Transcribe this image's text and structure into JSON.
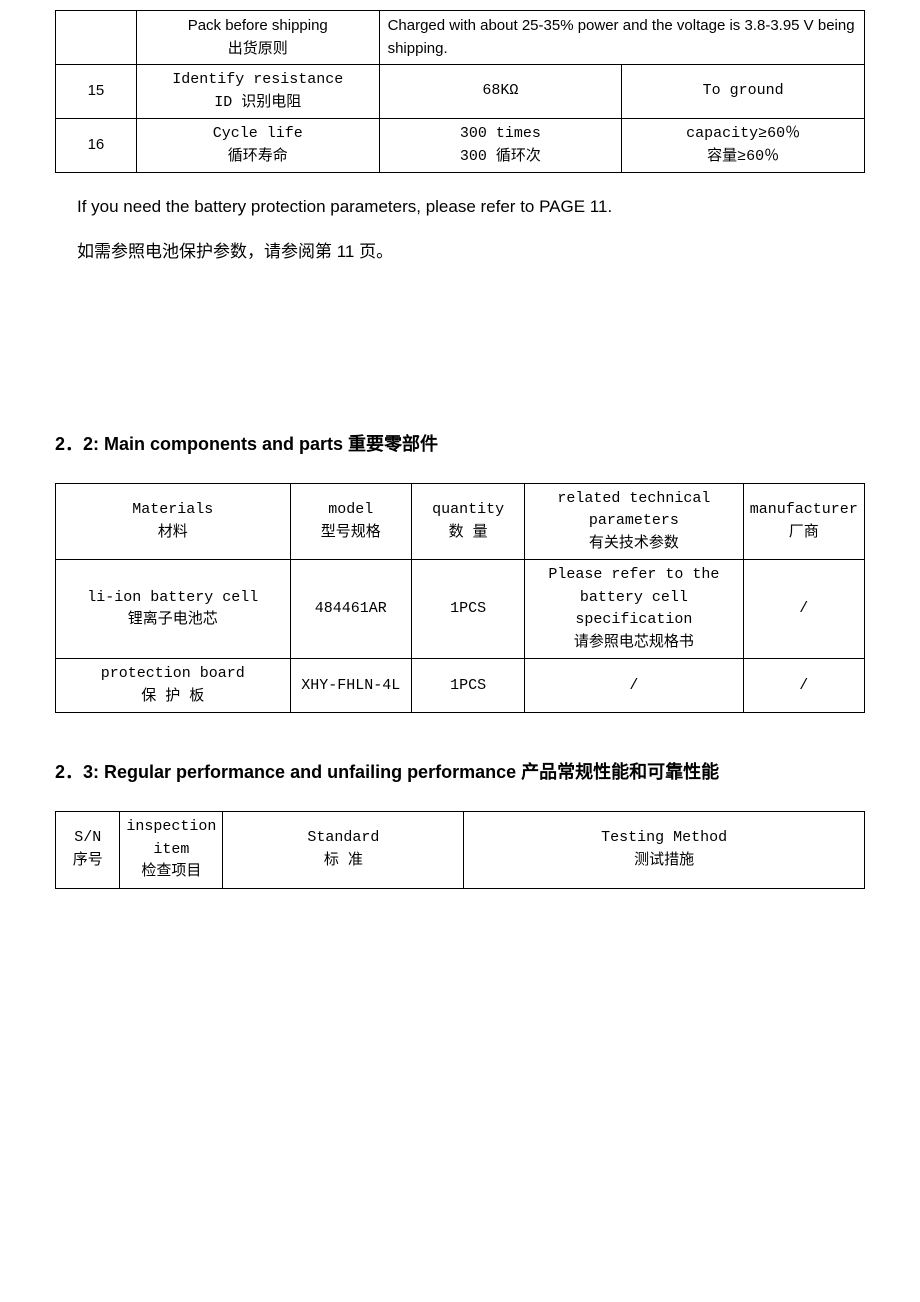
{
  "table1": {
    "rows": [
      {
        "num": "",
        "item_en": "Pack before shipping",
        "item_zh": "出货原则",
        "span_text": "Charged with about 25-35% power and the voltage is 3.8-3.95 V being shipping."
      },
      {
        "num": "15",
        "item_en": "Identify resistance",
        "item_zh": "ID 识别电阻",
        "val": "68KΩ",
        "cond": "To ground"
      },
      {
        "num": "16",
        "item_en": "Cycle life",
        "item_zh": "循环寿命",
        "val_en": "300 times",
        "val_zh": "300 循环次",
        "cond_en": "capacity≥60％",
        "cond_zh": "容量≥60％"
      }
    ]
  },
  "note_en": "If you need the battery protection parameters, please refer to PAGE 11.",
  "note_zh": "如需参照电池保护参数，请参阅第 11 页。",
  "section22": "2．2:  Main components and parts 重要零部件",
  "table2": {
    "headers": {
      "materials_en": "Materials",
      "materials_zh": "材料",
      "model_en": "model",
      "model_zh": "型号规格",
      "qty_en": "quantity",
      "qty_zh": "数 量",
      "params_en": "related technical parameters",
      "params_zh": "有关技术参数",
      "mfr_en": "manufacturer",
      "mfr_zh": "厂商"
    },
    "rows": [
      {
        "mat_en": "li-ion battery cell",
        "mat_zh": "锂离子电池芯",
        "model": "484461AR",
        "qty": "1PCS",
        "params_en": "Please refer to the battery cell specification",
        "params_zh": "请参照电芯规格书",
        "mfr": "/"
      },
      {
        "mat_en": "protection board",
        "mat_zh": "保 护 板",
        "model": "XHY-FHLN-4L",
        "qty": "1PCS",
        "params": "/",
        "mfr": "/"
      }
    ]
  },
  "section23": "2．3:  Regular performance and unfailing performance 产品常规性能和可靠性能",
  "table3": {
    "headers": {
      "sn_en": "S/N",
      "sn_zh": "序号",
      "item_en": "inspection item",
      "item_zh": "检查项目",
      "std_en": "Standard",
      "std_zh": "标  准",
      "method_en": "Testing Method",
      "method_zh": "测试措施"
    }
  }
}
